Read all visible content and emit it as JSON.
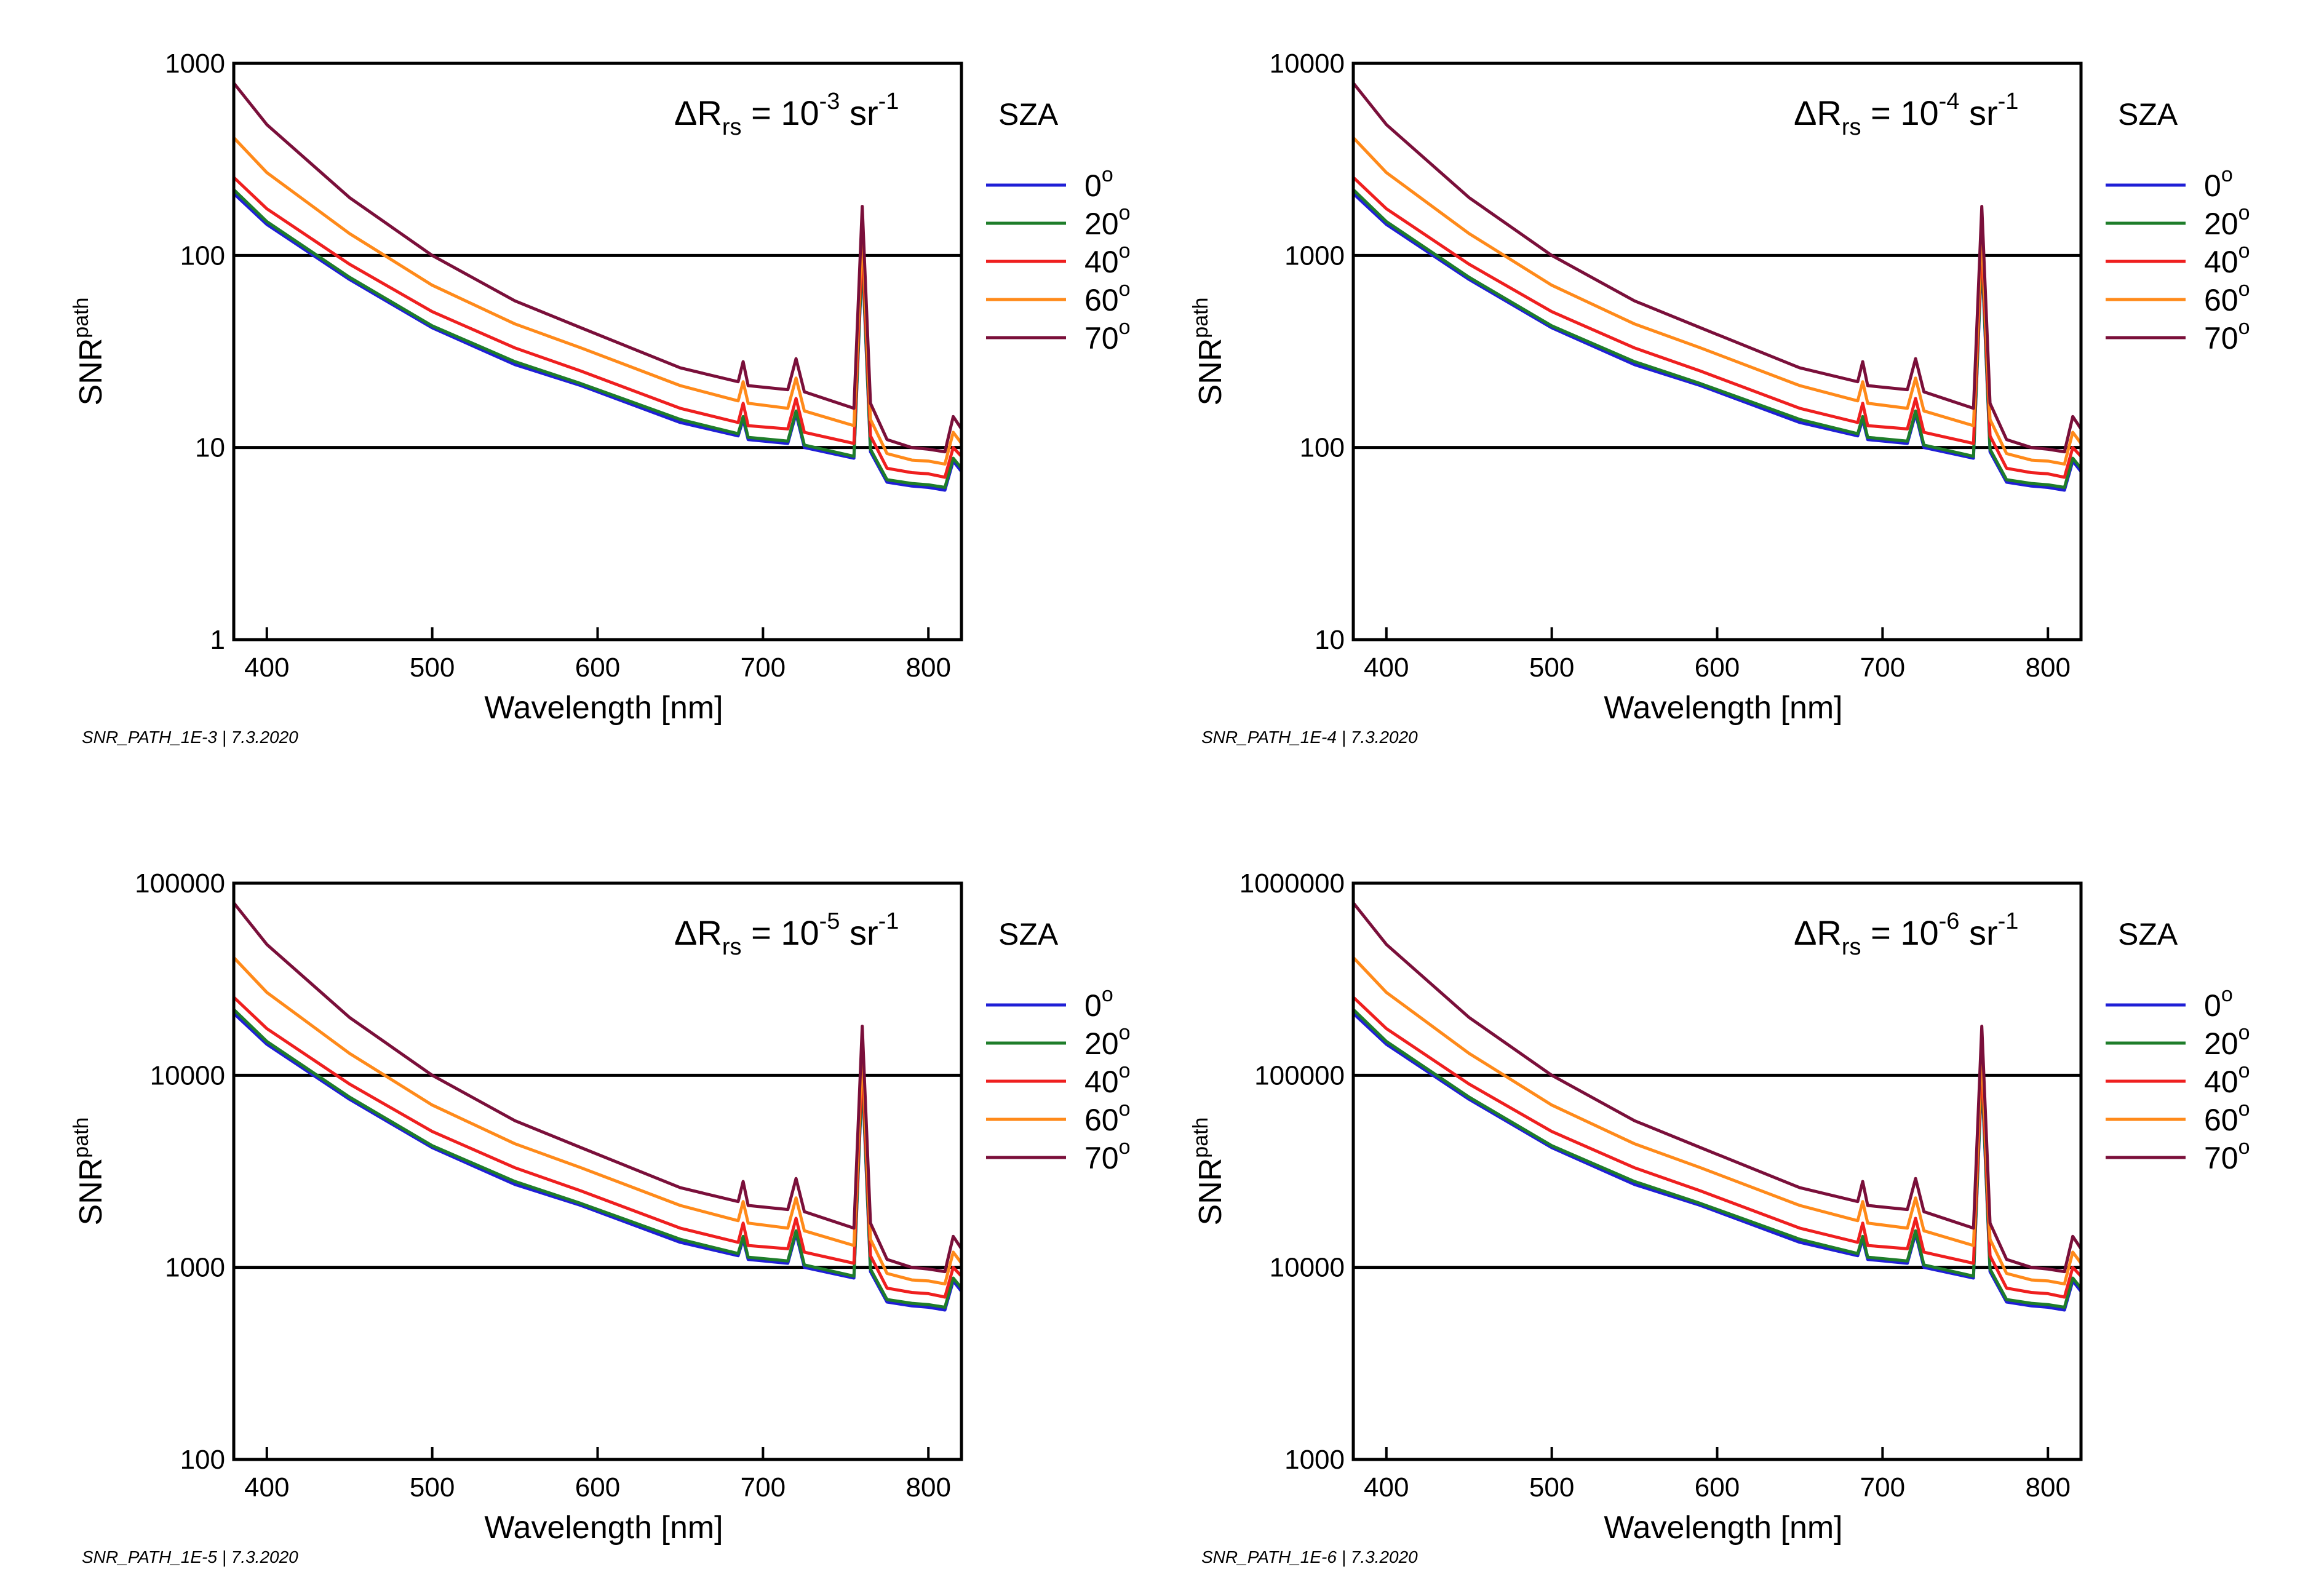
{
  "colors": {
    "sza_0": "#1f1fd6",
    "sza_20": "#1e7d2a",
    "sza_40": "#ef1f1f",
    "sza_60": "#ff8a1a",
    "sza_70": "#7a0f3a",
    "reference_line": "#000000"
  },
  "chart_data": [
    {
      "type": "line",
      "log_y": true,
      "title": "ΔRrs = 10-3 sr-1",
      "title_parts": {
        "prefix": "ΔR",
        "sub": "rs",
        "mid": " = 10",
        "exp": "-3",
        "unit": " sr",
        "unit_exp": "-1"
      },
      "xlabel": "Wavelength [nm]",
      "ylabel": "SNR",
      "ylabel_sup": "path",
      "xlim": [
        380,
        820
      ],
      "ylim": [
        1,
        1000
      ],
      "x_ticks": [
        400,
        500,
        600,
        700,
        800
      ],
      "y_ticks": [
        1,
        10,
        100,
        1000
      ],
      "y_tick_labels": [
        "1",
        "10",
        "100",
        "1000"
      ],
      "reference_lines": [
        10,
        100
      ],
      "legend_title": "SZA",
      "legend_position": "right",
      "footer": "SNR_PATH_1E-3 | 7.3.2020",
      "x": [
        380,
        400,
        450,
        500,
        550,
        590,
        650,
        685,
        688,
        691,
        715,
        720,
        725,
        755,
        760,
        765,
        775,
        790,
        800,
        810,
        815,
        820
      ],
      "series": [
        {
          "name": "0",
          "values": [
            210,
            145,
            75,
            42,
            27,
            21,
            13.5,
            11.5,
            14,
            11,
            10.5,
            15,
            10,
            8.8,
            100,
            9.5,
            6.6,
            6.3,
            6.2,
            6.0,
            8.5,
            7.5
          ]
        },
        {
          "name": "20",
          "values": [
            220,
            150,
            77,
            43,
            28,
            21.5,
            14,
            11.8,
            14.5,
            11.3,
            10.8,
            15.5,
            10.3,
            9.0,
            105,
            9.8,
            6.8,
            6.5,
            6.4,
            6.2,
            8.8,
            7.8
          ]
        },
        {
          "name": "40",
          "values": [
            255,
            175,
            90,
            51,
            33,
            25,
            16,
            13.5,
            17,
            13,
            12.5,
            18,
            12,
            10.5,
            120,
            11.5,
            7.8,
            7.4,
            7.3,
            7.0,
            10,
            9
          ]
        },
        {
          "name": "60",
          "values": [
            410,
            270,
            130,
            70,
            44,
            33,
            21,
            17.5,
            22,
            17,
            16,
            23,
            15.5,
            13,
            140,
            14,
            9.3,
            8.6,
            8.5,
            8.2,
            12,
            10.5
          ]
        },
        {
          "name": "70",
          "values": [
            790,
            480,
            200,
            100,
            58,
            42,
            26,
            22,
            28,
            21,
            20,
            29,
            19.5,
            16,
            180,
            17,
            11,
            10,
            9.8,
            9.5,
            14.5,
            12.5
          ]
        }
      ]
    },
    {
      "type": "line",
      "log_y": true,
      "title": "ΔRrs = 10-4 sr-1",
      "title_parts": {
        "prefix": "ΔR",
        "sub": "rs",
        "mid": " = 10",
        "exp": "-4",
        "unit": " sr",
        "unit_exp": "-1"
      },
      "xlabel": "Wavelength [nm]",
      "ylabel": "SNR",
      "ylabel_sup": "path",
      "xlim": [
        380,
        820
      ],
      "ylim": [
        10,
        10000
      ],
      "x_ticks": [
        400,
        500,
        600,
        700,
        800
      ],
      "y_ticks": [
        10,
        100,
        1000,
        10000
      ],
      "y_tick_labels": [
        "10",
        "100",
        "1000",
        "10000"
      ],
      "reference_lines": [
        100,
        1000
      ],
      "legend_title": "SZA",
      "legend_position": "right",
      "footer": "SNR_PATH_1E-4 | 7.3.2020",
      "x": [
        380,
        400,
        450,
        500,
        550,
        590,
        650,
        685,
        688,
        691,
        715,
        720,
        725,
        755,
        760,
        765,
        775,
        790,
        800,
        810,
        815,
        820
      ],
      "series": [
        {
          "name": "0",
          "values": [
            2100,
            1450,
            750,
            420,
            270,
            210,
            135,
            115,
            140,
            110,
            105,
            150,
            100,
            88,
            1000,
            95,
            66,
            63,
            62,
            60,
            85,
            75
          ]
        },
        {
          "name": "20",
          "values": [
            2200,
            1500,
            770,
            430,
            280,
            215,
            140,
            118,
            145,
            113,
            108,
            155,
            103,
            90,
            1050,
            98,
            68,
            65,
            64,
            62,
            88,
            78
          ]
        },
        {
          "name": "40",
          "values": [
            2550,
            1750,
            900,
            510,
            330,
            250,
            160,
            135,
            170,
            130,
            125,
            180,
            120,
            105,
            1200,
            115,
            78,
            74,
            73,
            70,
            100,
            90
          ]
        },
        {
          "name": "60",
          "values": [
            4100,
            2700,
            1300,
            700,
            440,
            330,
            210,
            175,
            220,
            170,
            160,
            230,
            155,
            130,
            1400,
            140,
            93,
            86,
            85,
            82,
            120,
            105
          ]
        },
        {
          "name": "70",
          "values": [
            7900,
            4800,
            2000,
            1000,
            580,
            420,
            260,
            220,
            280,
            210,
            200,
            290,
            195,
            160,
            1800,
            170,
            110,
            100,
            98,
            95,
            145,
            125
          ]
        }
      ]
    },
    {
      "type": "line",
      "log_y": true,
      "title": "ΔRrs = 10-5 sr-1",
      "title_parts": {
        "prefix": "ΔR",
        "sub": "rs",
        "mid": " = 10",
        "exp": "-5",
        "unit": " sr",
        "unit_exp": "-1"
      },
      "xlabel": "Wavelength [nm]",
      "ylabel": "SNR",
      "ylabel_sup": "path",
      "xlim": [
        380,
        820
      ],
      "ylim": [
        100,
        100000
      ],
      "x_ticks": [
        400,
        500,
        600,
        700,
        800
      ],
      "y_ticks": [
        100,
        1000,
        10000,
        100000
      ],
      "y_tick_labels": [
        "100",
        "1000",
        "10000",
        "100000"
      ],
      "reference_lines": [
        1000,
        10000
      ],
      "legend_title": "SZA",
      "legend_position": "right",
      "footer": "SNR_PATH_1E-5 | 7.3.2020",
      "x": [
        380,
        400,
        450,
        500,
        550,
        590,
        650,
        685,
        688,
        691,
        715,
        720,
        725,
        755,
        760,
        765,
        775,
        790,
        800,
        810,
        815,
        820
      ],
      "series": [
        {
          "name": "0",
          "values": [
            21000,
            14500,
            7500,
            4200,
            2700,
            2100,
            1350,
            1150,
            1400,
            1100,
            1050,
            1500,
            1000,
            880,
            10000,
            950,
            660,
            630,
            620,
            600,
            850,
            750
          ]
        },
        {
          "name": "20",
          "values": [
            22000,
            15000,
            7700,
            4300,
            2800,
            2150,
            1400,
            1180,
            1450,
            1130,
            1080,
            1550,
            1030,
            900,
            10500,
            980,
            680,
            650,
            640,
            620,
            880,
            780
          ]
        },
        {
          "name": "40",
          "values": [
            25500,
            17500,
            9000,
            5100,
            3300,
            2500,
            1600,
            1350,
            1700,
            1300,
            1250,
            1800,
            1200,
            1050,
            12000,
            1150,
            780,
            740,
            730,
            700,
            1000,
            900
          ]
        },
        {
          "name": "60",
          "values": [
            41000,
            27000,
            13000,
            7000,
            4400,
            3300,
            2100,
            1750,
            2200,
            1700,
            1600,
            2300,
            1550,
            1300,
            14000,
            1400,
            930,
            860,
            850,
            820,
            1200,
            1050
          ]
        },
        {
          "name": "70",
          "values": [
            79000,
            48000,
            20000,
            10000,
            5800,
            4200,
            2600,
            2200,
            2800,
            2100,
            2000,
            2900,
            1950,
            1600,
            18000,
            1700,
            1100,
            1000,
            980,
            950,
            1450,
            1250
          ]
        }
      ]
    },
    {
      "type": "line",
      "log_y": true,
      "title": "ΔRrs = 10-6 sr-1",
      "title_parts": {
        "prefix": "ΔR",
        "sub": "rs",
        "mid": " = 10",
        "exp": "-6",
        "unit": " sr",
        "unit_exp": "-1"
      },
      "xlabel": "Wavelength [nm]",
      "ylabel": "SNR",
      "ylabel_sup": "path",
      "xlim": [
        380,
        820
      ],
      "ylim": [
        1000,
        1000000
      ],
      "x_ticks": [
        400,
        500,
        600,
        700,
        800
      ],
      "y_ticks": [
        1000,
        10000,
        100000,
        1000000
      ],
      "y_tick_labels": [
        "1000",
        "10000",
        "100000",
        "1000000"
      ],
      "reference_lines": [
        10000,
        100000
      ],
      "legend_title": "SZA",
      "legend_position": "right",
      "footer": "SNR_PATH_1E-6 | 7.3.2020",
      "x": [
        380,
        400,
        450,
        500,
        550,
        590,
        650,
        685,
        688,
        691,
        715,
        720,
        725,
        755,
        760,
        765,
        775,
        790,
        800,
        810,
        815,
        820
      ],
      "series": [
        {
          "name": "0",
          "values": [
            210000,
            145000,
            75000,
            42000,
            27000,
            21000,
            13500,
            11500,
            14000,
            11000,
            10500,
            15000,
            10000,
            8800,
            100000,
            9500,
            6600,
            6300,
            6200,
            6000,
            8500,
            7500
          ]
        },
        {
          "name": "20",
          "values": [
            220000,
            150000,
            77000,
            43000,
            28000,
            21500,
            14000,
            11800,
            14500,
            11300,
            10800,
            15500,
            10300,
            9000,
            105000,
            9800,
            6800,
            6500,
            6400,
            6200,
            8800,
            7800
          ]
        },
        {
          "name": "40",
          "values": [
            255000,
            175000,
            90000,
            51000,
            33000,
            25000,
            16000,
            13500,
            17000,
            13000,
            12500,
            18000,
            12000,
            10500,
            120000,
            11500,
            7800,
            7400,
            7300,
            7000,
            10000,
            9000
          ]
        },
        {
          "name": "60",
          "values": [
            410000,
            270000,
            130000,
            70000,
            44000,
            33000,
            21000,
            17500,
            22000,
            17000,
            16000,
            23000,
            15500,
            13000,
            140000,
            14000,
            9300,
            8600,
            8500,
            8200,
            12000,
            10500
          ]
        },
        {
          "name": "70",
          "values": [
            790000,
            480000,
            200000,
            100000,
            58000,
            42000,
            26000,
            22000,
            28000,
            21000,
            20000,
            29000,
            19500,
            16000,
            180000,
            17000,
            11000,
            10000,
            9800,
            9500,
            14500,
            12500
          ]
        }
      ]
    }
  ]
}
